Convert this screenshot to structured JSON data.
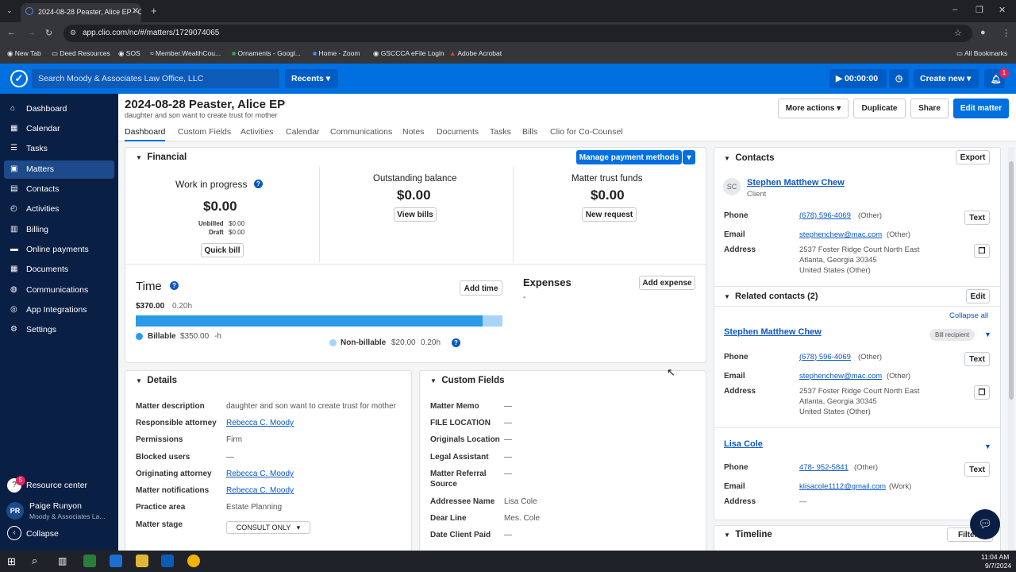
{
  "browser": {
    "tab_title": "2024-08-28 Peaster, Alice EP - Cl",
    "url": "app.clio.com/nc/#/matters/1729074065",
    "bookmarks": [
      "New Tab",
      "Deed Resources",
      "SOS",
      "Member.WealthCou...",
      "Ornaments - Googl...",
      "Home - Zoom",
      "GSCCCA eFile Login",
      "Adobe Acrobat"
    ],
    "all_bookmarks": "All Bookmarks"
  },
  "header": {
    "search_placeholder": "Search Moody & Associates Law Office, LLC",
    "recents": "Recents",
    "timer": "00:00:00",
    "create_new": "Create new",
    "notif_count": "1"
  },
  "sidebar": {
    "items": [
      "Dashboard",
      "Calendar",
      "Tasks",
      "Matters",
      "Contacts",
      "Activities",
      "Billing",
      "Online payments",
      "Documents",
      "Communications",
      "App Integrations",
      "Settings"
    ],
    "resource_center": "Resource center",
    "resource_badge": "5",
    "user_initials": "PR",
    "user_name": "Paige Runyon",
    "user_firm": "Moody & Associates La...",
    "collapse": "Collapse"
  },
  "matter": {
    "title": "2024-08-28 Peaster, Alice EP",
    "subtitle": "daughter and son want to create trust for mother",
    "more_actions": "More actions",
    "duplicate": "Duplicate",
    "share": "Share",
    "edit": "Edit matter"
  },
  "tabs": [
    "Dashboard",
    "Custom Fields",
    "Activities",
    "Calendar",
    "Communications",
    "Notes",
    "Documents",
    "Tasks",
    "Bills",
    "Clio for Co-Counsel"
  ],
  "financial": {
    "title": "Financial",
    "manage": "Manage payment methods",
    "wip_label": "Work in progress",
    "wip": "$0.00",
    "unbilled_label": "Unbilled",
    "unbilled": "$0.00",
    "draft_label": "Draft",
    "draft": "$0.00",
    "quick_bill": "Quick bill",
    "outstanding_label": "Outstanding balance",
    "outstanding": "$0.00",
    "view_bills": "View bills",
    "trust_label": "Matter trust funds",
    "trust": "$0.00",
    "new_request": "New request"
  },
  "time": {
    "title": "Time",
    "add_time": "Add time",
    "total": "$370.00",
    "hours": "0.20h",
    "billable_fraction": 0.946,
    "billable_label": "Billable",
    "billable_amt": "$350.00",
    "billable_hrs": "-h",
    "nonbillable_label": "Non-billable",
    "nonbillable_amt": "$20.00",
    "nonbillable_hrs": "0.20h"
  },
  "expenses": {
    "title": "Expenses",
    "add": "Add expense",
    "value": "-"
  },
  "details": {
    "title": "Details",
    "rows": [
      {
        "label": "Matter description",
        "value": "daughter and son want to create trust for mother"
      },
      {
        "label": "Responsible attorney",
        "value": "Rebecca C. Moody"
      },
      {
        "label": "Permissions",
        "value": "Firm"
      },
      {
        "label": "Blocked users",
        "value": "—"
      },
      {
        "label": "Originating attorney",
        "value": "Rebecca C. Moody"
      },
      {
        "label": "Matter notifications",
        "value": "Rebecca C. Moody"
      },
      {
        "label": "Practice area",
        "value": "Estate Planning"
      },
      {
        "label": "Matter stage",
        "value": "CONSULT ONLY"
      }
    ]
  },
  "custom_fields": {
    "title": "Custom Fields",
    "rows": [
      {
        "label": "Matter Memo",
        "value": "—"
      },
      {
        "label": "FILE LOCATION",
        "value": "—"
      },
      {
        "label": "Originals Location",
        "value": "—"
      },
      {
        "label": "Legal Assistant",
        "value": "—"
      },
      {
        "label": "Matter Referral",
        "label2": "Source",
        "value": "—"
      },
      {
        "label": "Addressee Name",
        "value": "Lisa Cole"
      },
      {
        "label": "Dear Line",
        "value": "Mes. Cole"
      },
      {
        "label": "Date Client Paid",
        "value": "—"
      }
    ]
  },
  "contacts": {
    "title": "Contacts",
    "export": "Export",
    "client_initials": "SC",
    "client_name": "Stephen Matthew Chew",
    "client_role": "Client",
    "phone_label": "Phone",
    "email_label": "Email",
    "address_label": "Address",
    "text_btn": "Text",
    "phone": "(678) 596-4069",
    "phone_type": "(Other)",
    "email": "stephenchew@mac.com",
    "email_type": "(Other)",
    "addr1": "2537 Foster Ridge Court North East",
    "addr2": "Atlanta, Georgia 30345",
    "addr3": "United States  (Other)",
    "related_title": "Related contacts (2)",
    "edit": "Edit",
    "collapse_all": "Collapse all",
    "bill_recipient": "Bill recipient",
    "rel1_name": "Stephen Matthew Chew",
    "rel2_name": "Lisa Cole",
    "rel2_phone": "478- 952-5841",
    "rel2_phone_type": "(Other)",
    "rel2_email": "klisacole1112@gmail.com",
    "rel2_email_type": "(Work)",
    "rel2_addr": "—",
    "timeline": "Timeline",
    "filters": "Filters"
  },
  "taskbar": {
    "time": "11:04 AM",
    "date": "9/7/2024"
  }
}
